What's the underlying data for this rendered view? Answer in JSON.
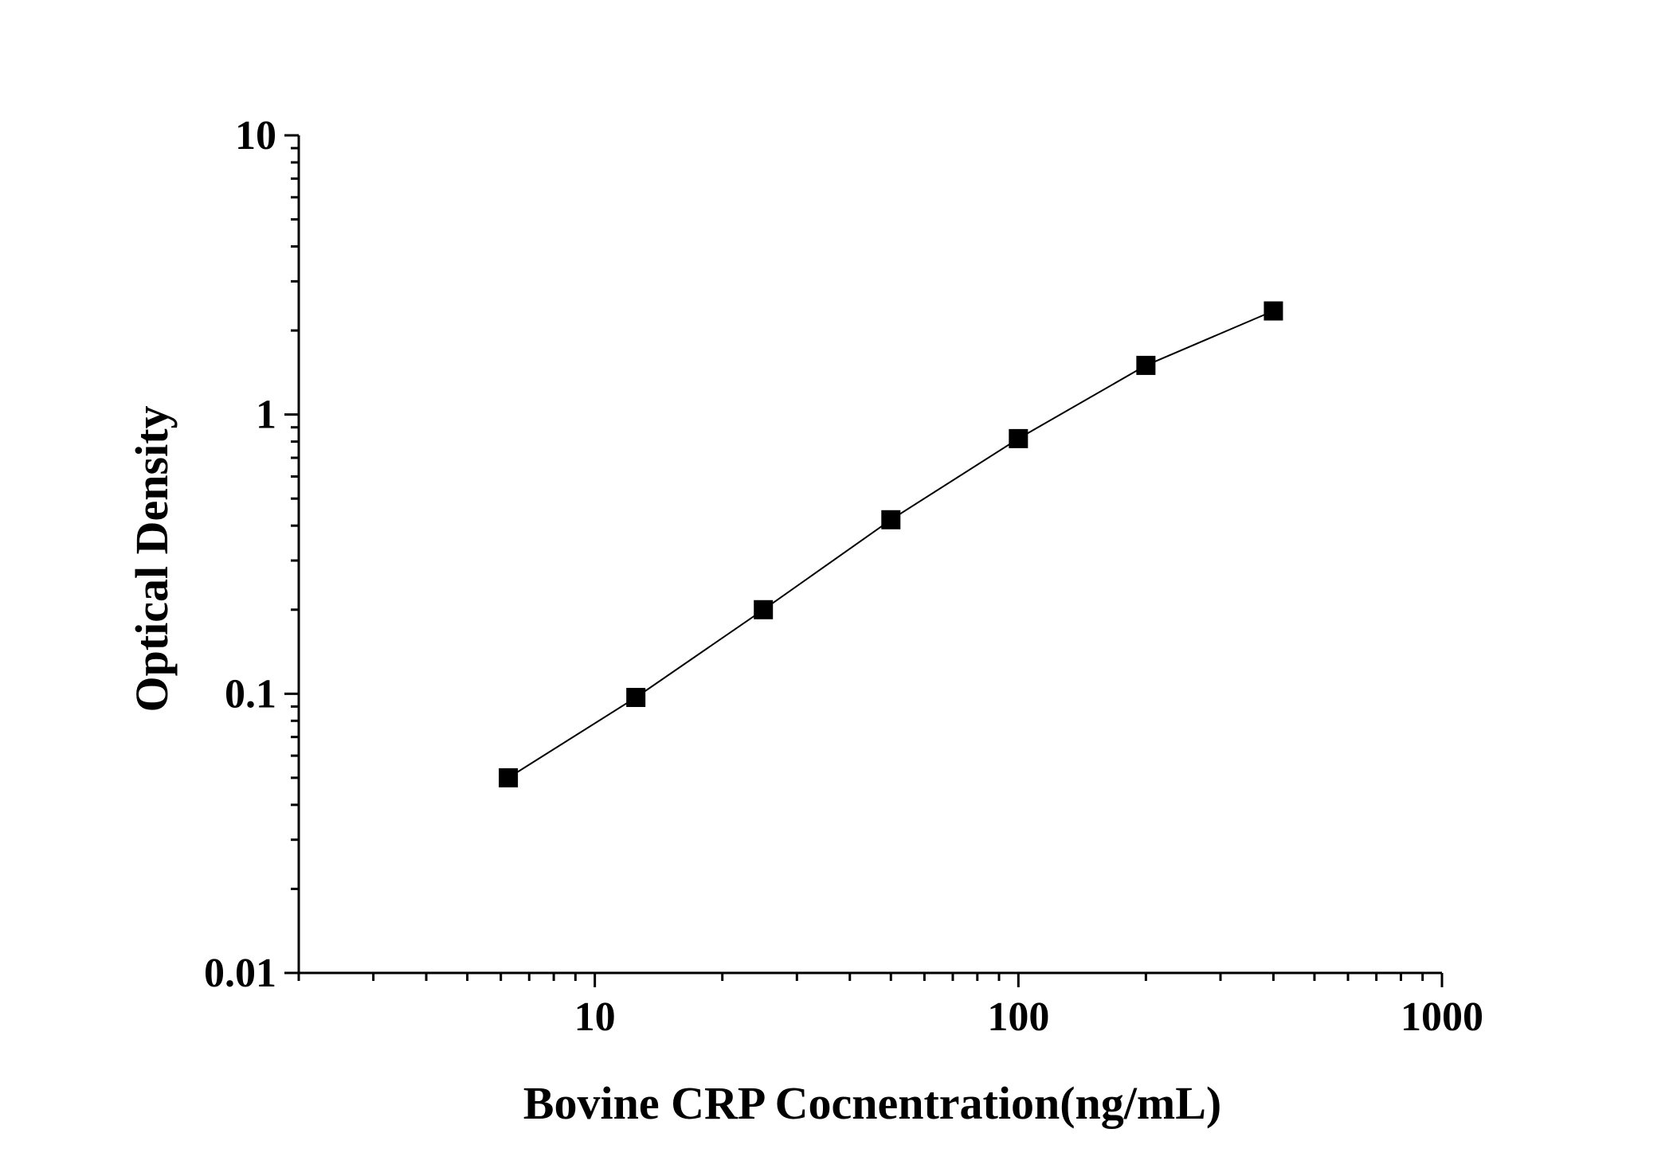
{
  "chart_data": {
    "type": "line",
    "title": "",
    "xlabel": "Bovine CRP Cocnentration(ng/mL)",
    "ylabel": "Optical Density",
    "x_scale": "log",
    "y_scale": "log",
    "xlim": [
      2,
      1000
    ],
    "ylim": [
      0.01,
      10
    ],
    "x_ticks": [
      {
        "value": 10,
        "label": "10"
      },
      {
        "value": 100,
        "label": "100"
      },
      {
        "value": 1000,
        "label": "1000"
      }
    ],
    "y_ticks": [
      {
        "value": 0.01,
        "label": "0.01"
      },
      {
        "value": 0.1,
        "label": "0.1"
      },
      {
        "value": 1,
        "label": "1"
      },
      {
        "value": 10,
        "label": "10"
      }
    ],
    "grid": false,
    "legend": "none",
    "marker": "square",
    "series": [
      {
        "x": [
          6.25,
          12.5,
          25,
          50,
          100,
          200,
          400
        ],
        "y": [
          0.05,
          0.097,
          0.2,
          0.42,
          0.82,
          1.5,
          2.35
        ]
      }
    ],
    "colors": {
      "line": "#000000",
      "marker": "#000000",
      "axis": "#000000"
    }
  }
}
